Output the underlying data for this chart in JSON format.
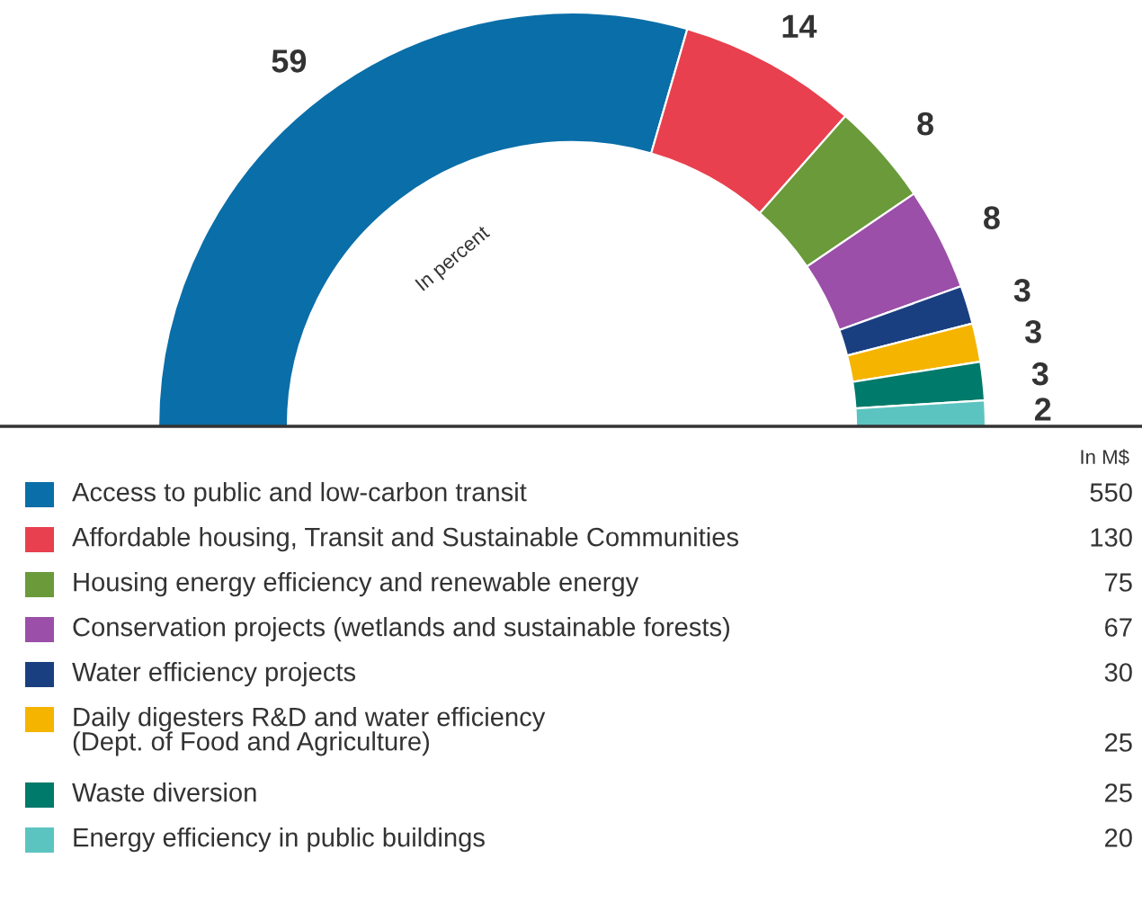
{
  "chart_data": {
    "type": "donut",
    "categories": [
      "Access to public and low-carbon transit",
      "Affordable housing, Transit and Sustainable Communities",
      "Housing energy efficiency and renewable energy",
      "Conservation projects (wetlands and sustainable forests)",
      "Water efficiency projects",
      "Daily digesters R&D and water efficiency\n(Dept. of Food and Agriculture)",
      "Waste diversion",
      "Energy efficiency in public buildings"
    ],
    "values": [
      59,
      14,
      8,
      8,
      3,
      3,
      3,
      2
    ],
    "colors": [
      "#0a6ea8",
      "#e8404e",
      "#6a9a3a",
      "#9b4fa8",
      "#1a3f80",
      "#f5b400",
      "#007a6a",
      "#5cc4c0"
    ],
    "data_labels": true,
    "legend": "bottom",
    "annotations": [
      "In percent",
      "In M$",
      "550",
      "130",
      "75",
      "67",
      "30",
      "25",
      "25",
      "20"
    ]
  }
}
